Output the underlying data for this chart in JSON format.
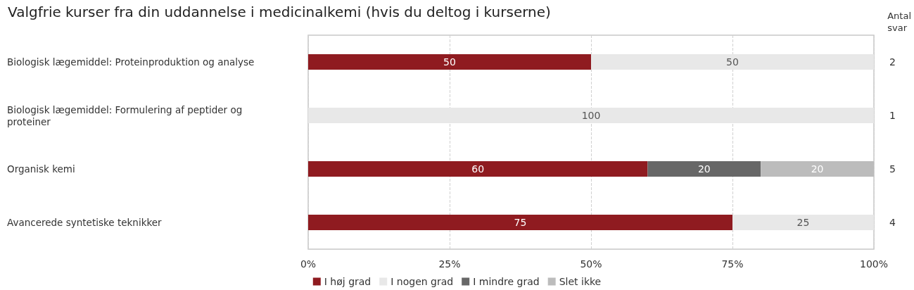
{
  "chart_data": {
    "type": "bar",
    "orientation": "horizontal",
    "stacked": true,
    "title": "Valgfrie kurser fra din uddannelse i medicinalkemi (hvis du deltog i kurserne)",
    "categories": [
      "Biologisk lægemiddel: Proteinproduktion og analyse",
      "Biologisk lægemiddel: Formulering af peptider og proteiner",
      "Organisk kemi",
      "Avancerede syntetiske teknikker"
    ],
    "series": [
      {
        "name": "I høj grad",
        "color": "#8f1b20",
        "values": [
          50,
          null,
          60,
          75
        ]
      },
      {
        "name": "I nogen grad",
        "color": "#e8e8e8",
        "values": [
          50,
          100,
          null,
          25
        ]
      },
      {
        "name": "I mindre grad",
        "color": "#676767",
        "values": [
          null,
          null,
          20,
          null
        ]
      },
      {
        "name": "Slet ikke",
        "color": "#bcbcbc",
        "values": [
          null,
          null,
          20,
          null
        ]
      }
    ],
    "xlim": [
      0,
      100
    ],
    "xticks": [
      {
        "value": 0,
        "label": "0%"
      },
      {
        "value": 25,
        "label": "25%"
      },
      {
        "value": 50,
        "label": "50%"
      },
      {
        "value": 75,
        "label": "75%"
      },
      {
        "value": 100,
        "label": "100%"
      }
    ],
    "grid": "x",
    "legend": "bottom",
    "data_labels": true,
    "annotations": [
      "Antal svar",
      "2",
      "1",
      "5",
      "4"
    ]
  }
}
